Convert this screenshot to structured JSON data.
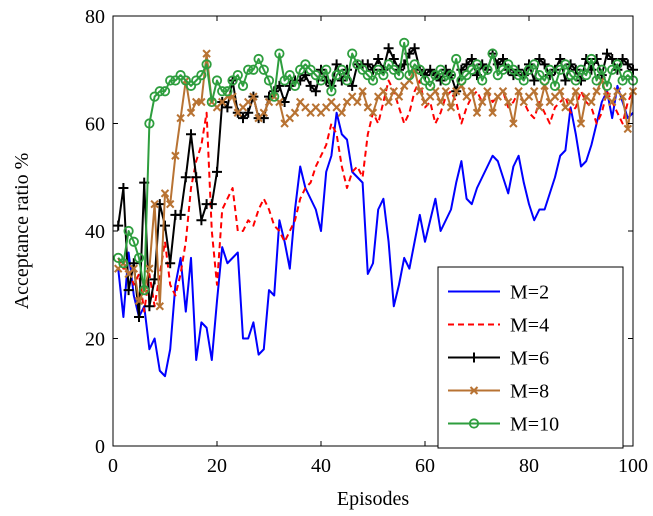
{
  "chart_data": {
    "type": "line",
    "title": "",
    "xlabel": "Episodes",
    "ylabel": "Acceptance ratio %",
    "xlim": [
      0,
      100
    ],
    "ylim": [
      0,
      80
    ],
    "xticks": [
      0,
      20,
      40,
      60,
      80,
      100
    ],
    "yticks": [
      0,
      20,
      40,
      60,
      80
    ],
    "grid": false,
    "legend_position": "bottom-right",
    "x": [
      1,
      2,
      3,
      4,
      5,
      6,
      7,
      8,
      9,
      10,
      11,
      12,
      13,
      14,
      15,
      16,
      17,
      18,
      19,
      20,
      21,
      22,
      23,
      24,
      25,
      26,
      27,
      28,
      29,
      30,
      31,
      32,
      33,
      34,
      35,
      36,
      37,
      38,
      39,
      40,
      41,
      42,
      43,
      44,
      45,
      46,
      47,
      48,
      49,
      50,
      51,
      52,
      53,
      54,
      55,
      56,
      57,
      58,
      59,
      60,
      61,
      62,
      63,
      64,
      65,
      66,
      67,
      68,
      69,
      70,
      71,
      72,
      73,
      74,
      75,
      76,
      77,
      78,
      79,
      80,
      81,
      82,
      83,
      84,
      85,
      86,
      87,
      88,
      89,
      90,
      91,
      92,
      93,
      94,
      95,
      96,
      97,
      98,
      99,
      100
    ],
    "series": [
      {
        "name": "M=2",
        "color": "#0000ff",
        "dash": "solid",
        "marker": "none",
        "values": [
          33,
          24,
          36,
          28,
          24,
          26,
          18,
          20,
          14,
          13,
          18,
          30,
          35,
          25,
          35,
          16,
          23,
          22,
          16,
          27,
          37,
          34,
          35,
          36,
          20,
          20,
          23,
          17,
          18,
          29,
          28,
          42,
          38,
          33,
          44,
          52,
          48,
          46,
          44,
          40,
          51,
          54,
          62,
          58,
          57,
          51,
          50,
          49,
          32,
          34,
          44,
          46,
          38,
          26,
          30,
          35,
          33,
          38,
          43,
          38,
          42,
          46,
          40,
          42,
          44,
          49,
          53,
          46,
          45,
          48,
          50,
          52,
          54,
          53,
          50,
          47,
          52,
          54,
          49,
          45,
          42,
          44,
          44,
          47,
          50,
          54,
          55,
          63,
          58,
          52,
          53,
          56,
          60,
          64,
          66,
          61,
          67,
          64,
          61,
          62
        ]
      },
      {
        "name": "M=4",
        "color": "#ff0000",
        "dash": "dashed",
        "marker": "none",
        "values": [
          35,
          33,
          33,
          30,
          32,
          25,
          32,
          26,
          32,
          38,
          30,
          28,
          32,
          38,
          48,
          53,
          56,
          62,
          40,
          30,
          44,
          46,
          48,
          40,
          40,
          42,
          41,
          44,
          46,
          44,
          41,
          40,
          38,
          40,
          42,
          46,
          48,
          49,
          52,
          54,
          56,
          60,
          58,
          52,
          48,
          51,
          52,
          50,
          58,
          62,
          60,
          64,
          68,
          66,
          63,
          60,
          62,
          66,
          68,
          63,
          64,
          60,
          62,
          65,
          66,
          64,
          60,
          63,
          65,
          66,
          64,
          66,
          64,
          65,
          66,
          63,
          64,
          66,
          64,
          62,
          61,
          64,
          62,
          60,
          63,
          64,
          65,
          62,
          63,
          66,
          64,
          63,
          60,
          62,
          66,
          64,
          62,
          60,
          64,
          66
        ]
      },
      {
        "name": "M=6",
        "color": "#000000",
        "dash": "solid",
        "marker": "plus",
        "values": [
          41,
          48,
          29,
          34,
          24,
          49,
          26,
          31,
          45,
          41,
          34,
          43,
          43,
          50,
          58,
          50,
          42,
          45,
          45,
          51,
          64,
          63,
          68,
          62,
          61,
          62,
          65,
          61,
          61,
          65,
          66,
          67,
          64,
          67,
          68,
          68,
          69,
          67,
          66,
          70,
          68,
          67,
          71,
          68,
          70,
          67,
          71,
          71,
          71,
          70,
          72,
          70,
          74,
          72,
          70,
          71,
          73,
          74,
          70,
          69,
          70,
          69,
          68,
          70,
          69,
          66,
          70,
          71,
          72,
          69,
          71,
          70,
          73,
          71,
          72,
          70,
          69,
          70,
          69,
          71,
          68,
          72,
          71,
          69,
          70,
          72,
          68,
          71,
          70,
          68,
          72,
          70,
          72,
          69,
          73,
          72,
          70,
          72,
          71,
          70
        ]
      },
      {
        "name": "M=8",
        "color": "#b87333",
        "dash": "solid",
        "marker": "x",
        "values": [
          33,
          34,
          32,
          33,
          27,
          29,
          33,
          45,
          26,
          47,
          45,
          54,
          61,
          68,
          62,
          64,
          64,
          73,
          64,
          63,
          64,
          65,
          65,
          62,
          63,
          64,
          65,
          61,
          62,
          64,
          65,
          64,
          60,
          61,
          62,
          64,
          63,
          62,
          63,
          62,
          63,
          64,
          63,
          62,
          64,
          65,
          64,
          66,
          63,
          62,
          65,
          66,
          64,
          66,
          65,
          67,
          68,
          70,
          66,
          64,
          65,
          66,
          64,
          66,
          63,
          66,
          67,
          65,
          66,
          62,
          64,
          66,
          62,
          65,
          66,
          64,
          60,
          66,
          64,
          65,
          66,
          63,
          67,
          64,
          65,
          66,
          63,
          64,
          66,
          60,
          65,
          64,
          66,
          68,
          65,
          64,
          66,
          65,
          59,
          66
        ]
      },
      {
        "name": "M=10",
        "color": "#2e9e3e",
        "dash": "solid",
        "marker": "circle",
        "values": [
          35,
          34,
          40,
          38,
          35,
          29,
          60,
          65,
          66,
          66,
          68,
          68,
          69,
          68,
          67,
          68,
          69,
          71,
          64,
          68,
          66,
          66,
          68,
          69,
          67,
          70,
          70,
          72,
          70,
          68,
          65,
          73,
          68,
          69,
          67,
          70,
          71,
          70,
          69,
          68,
          70,
          66,
          69,
          70,
          68,
          73,
          71,
          70,
          69,
          68,
          70,
          69,
          71,
          70,
          69,
          75,
          69,
          71,
          70,
          68,
          67,
          69,
          70,
          68,
          69,
          72,
          68,
          69,
          70,
          71,
          68,
          70,
          73,
          69,
          70,
          71,
          70,
          69,
          68,
          70,
          71,
          69,
          68,
          70,
          67,
          70,
          71,
          69,
          68,
          70,
          69,
          72,
          68,
          70,
          67,
          70,
          71,
          68,
          69,
          68
        ]
      }
    ]
  }
}
